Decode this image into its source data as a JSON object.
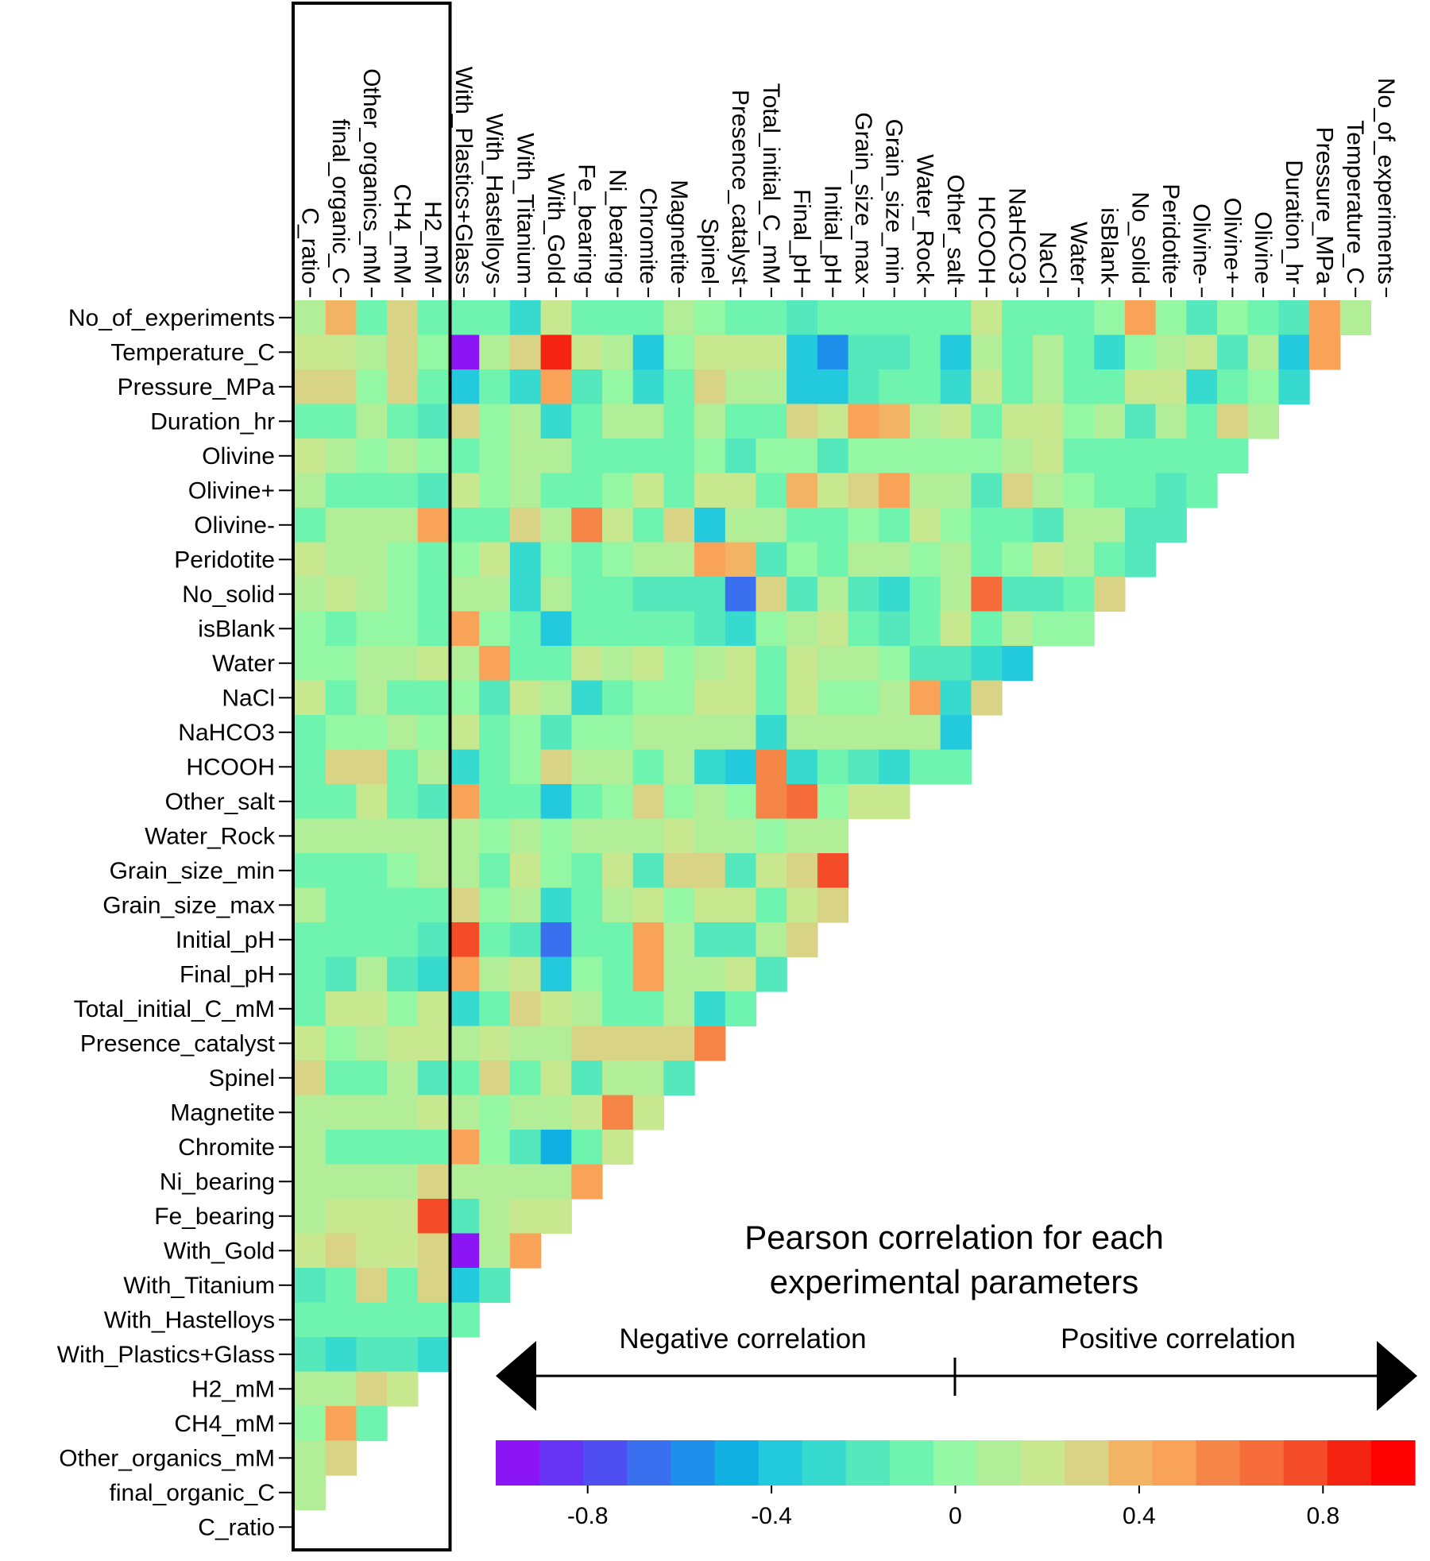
{
  "chart_data": {
    "type": "heatmap",
    "title_lines": [
      "Pearson correlation for each",
      "experimental parameters"
    ],
    "row_labels": [
      "No_of_experiments",
      "Temperature_C",
      "Pressure_MPa",
      "Duration_hr",
      "Olivine",
      "Olivine+",
      "Olivine-",
      "Peridotite",
      "No_solid",
      "isBlank",
      "Water",
      "NaCl",
      "NaHCO3",
      "HCOOH",
      "Other_salt",
      "Water_Rock",
      "Grain_size_min",
      "Grain_size_max",
      "Initial_pH",
      "Final_pH",
      "Total_initial_C_mM",
      "Presence_catalyst",
      "Spinel",
      "Magnetite",
      "Chromite",
      "Ni_bearing",
      "Fe_bearing",
      "With_Gold",
      "With_Titanium",
      "With_Hastelloys",
      "With_Plastics+Glass",
      "H2_mM",
      "CH4_mM",
      "Other_organics_mM",
      "final_organic_C",
      "C_ratio"
    ],
    "col_labels": [
      "C_ratio",
      "final_organic_C",
      "Other_organics_mM",
      "CH4_mM",
      "H2_mM",
      "With_Plastics+Glass",
      "With_Hastelloys",
      "With_Titanium",
      "With_Gold",
      "Fe_bearing",
      "Ni_bearing",
      "Chromite",
      "Magnetite",
      "Spinel",
      "Presence_catalyst",
      "Total_initial_C_mM",
      "Final_pH",
      "Initial_pH",
      "Grain_size_max",
      "Grain_size_min",
      "Water_Rock",
      "Other_salt",
      "HCOOH",
      "NaHCO3",
      "NaCl",
      "Water",
      "isBlank",
      "No_solid",
      "Peridotite",
      "Olivine-",
      "Olivine+",
      "Olivine",
      "Duration_hr",
      "Pressure_MPa",
      "Temperature_C",
      "No_of_experiments"
    ],
    "highlighted_columns": [
      "C_ratio",
      "final_organic_C",
      "Other_organics_mM",
      "CH4_mM",
      "H2_mM"
    ],
    "values": [
      [
        0.05,
        0.35,
        -0.1,
        0.25,
        -0.05,
        -0.05,
        -0.1,
        -0.25,
        0.2,
        -0.05,
        -0.1,
        -0.05,
        0.05,
        0.0,
        -0.1,
        -0.05,
        -0.15,
        -0.1,
        -0.05,
        -0.05,
        -0.05,
        -0.05,
        0.2,
        -0.05,
        -0.05,
        -0.05,
        0.0,
        0.45,
        0.0,
        -0.15,
        0.0,
        -0.05,
        -0.15,
        0.5,
        0.1
      ],
      [
        0.15,
        0.2,
        0.05,
        0.25,
        0.0,
        -0.95,
        0.05,
        0.25,
        0.9,
        0.15,
        0.05,
        -0.4,
        0.0,
        0.15,
        0.15,
        0.15,
        -0.4,
        -0.6,
        -0.2,
        -0.15,
        -0.05,
        -0.35,
        0.1,
        -0.1,
        0.05,
        -0.1,
        -0.25,
        0.0,
        0.05,
        0.15,
        -0.2,
        0.1,
        -0.35,
        0.5
      ],
      [
        0.3,
        0.25,
        0.0,
        0.25,
        -0.1,
        -0.35,
        -0.05,
        -0.25,
        0.45,
        -0.15,
        0.0,
        -0.25,
        -0.1,
        0.3,
        0.05,
        0.05,
        -0.4,
        -0.35,
        -0.15,
        -0.1,
        -0.1,
        -0.25,
        0.15,
        -0.05,
        0.05,
        -0.1,
        -0.1,
        0.2,
        0.2,
        -0.25,
        -0.1,
        0.0,
        -0.25
      ],
      [
        -0.05,
        -0.05,
        0.05,
        -0.1,
        -0.15,
        0.3,
        0.0,
        0.1,
        -0.25,
        -0.05,
        0.1,
        0.1,
        -0.1,
        0.05,
        -0.05,
        -0.05,
        0.3,
        0.2,
        0.5,
        0.4,
        0.1,
        0.2,
        -0.1,
        0.2,
        0.15,
        0.0,
        0.05,
        -0.15,
        0.05,
        -0.05,
        0.3,
        0.1
      ],
      [
        0.15,
        0.05,
        0.0,
        0.05,
        0.0,
        -0.05,
        0.0,
        0.1,
        0.1,
        -0.05,
        -0.05,
        -0.05,
        -0.05,
        0.0,
        -0.2,
        0.0,
        0.0,
        -0.15,
        0.0,
        0.0,
        0.0,
        0.0,
        0.0,
        0.05,
        0.2,
        -0.05,
        -0.05,
        -0.05,
        -0.1,
        -0.1,
        -0.1
      ],
      [
        0.05,
        -0.05,
        -0.05,
        -0.05,
        -0.15,
        0.15,
        0.0,
        0.1,
        -0.05,
        -0.05,
        0.0,
        0.2,
        -0.1,
        0.2,
        0.15,
        -0.1,
        0.4,
        0.2,
        0.3,
        0.45,
        0.05,
        0.1,
        -0.15,
        0.3,
        0.05,
        0.0,
        -0.05,
        -0.1,
        -0.2,
        -0.1
      ],
      [
        -0.1,
        0.05,
        0.1,
        0.1,
        0.5,
        -0.05,
        -0.05,
        0.3,
        0.05,
        0.6,
        0.2,
        -0.1,
        0.3,
        -0.4,
        0.1,
        0.1,
        -0.1,
        -0.05,
        0.0,
        -0.1,
        0.15,
        0.0,
        -0.05,
        -0.1,
        -0.15,
        0.1,
        0.05,
        -0.15,
        -0.2
      ],
      [
        0.15,
        0.05,
        0.05,
        0.0,
        -0.05,
        0.0,
        0.2,
        -0.25,
        0.0,
        -0.1,
        0.0,
        0.1,
        0.1,
        0.5,
        0.4,
        -0.2,
        0.0,
        -0.1,
        0.05,
        0.05,
        0.0,
        0.05,
        -0.05,
        0.0,
        0.2,
        0.1,
        -0.05,
        -0.15
      ],
      [
        0.05,
        0.2,
        0.05,
        0.0,
        -0.1,
        0.05,
        0.05,
        -0.25,
        0.05,
        -0.1,
        -0.1,
        -0.15,
        -0.15,
        -0.2,
        -0.65,
        0.25,
        -0.15,
        0.05,
        -0.15,
        -0.25,
        -0.1,
        0.05,
        0.65,
        -0.2,
        -0.2,
        -0.05,
        0.3
      ],
      [
        0.0,
        -0.1,
        0.0,
        0.0,
        -0.1,
        0.45,
        0.0,
        -0.05,
        -0.4,
        -0.05,
        -0.05,
        -0.05,
        -0.05,
        -0.15,
        -0.25,
        0.0,
        0.05,
        0.15,
        -0.05,
        -0.15,
        -0.05,
        0.15,
        -0.05,
        0.1,
        0.0,
        0.0
      ],
      [
        0.0,
        0.0,
        0.05,
        0.05,
        0.2,
        0.05,
        0.45,
        -0.05,
        -0.1,
        0.15,
        0.1,
        0.15,
        0.0,
        0.1,
        0.2,
        -0.1,
        0.15,
        0.05,
        0.05,
        0.0,
        -0.15,
        -0.15,
        -0.3,
        -0.4
      ],
      [
        0.15,
        -0.1,
        0.05,
        -0.05,
        -0.1,
        0.0,
        -0.15,
        0.15,
        0.05,
        -0.25,
        -0.1,
        0.0,
        0.0,
        0.2,
        0.15,
        -0.1,
        0.2,
        0.0,
        0.0,
        0.1,
        0.45,
        -0.3,
        0.3
      ],
      [
        -0.05,
        0.0,
        0.0,
        0.05,
        0.0,
        0.2,
        -0.05,
        0.0,
        -0.15,
        0.0,
        0.0,
        0.05,
        0.05,
        0.1,
        0.1,
        -0.25,
        0.1,
        0.05,
        0.05,
        0.1,
        0.1,
        -0.35
      ],
      [
        -0.05,
        0.25,
        0.25,
        -0.05,
        0.05,
        -0.25,
        -0.05,
        0.0,
        0.3,
        0.05,
        0.1,
        -0.1,
        0.05,
        -0.25,
        -0.4,
        0.6,
        -0.25,
        -0.05,
        -0.2,
        -0.3,
        -0.05,
        -0.1
      ],
      [
        -0.05,
        -0.05,
        0.15,
        -0.1,
        -0.15,
        0.45,
        -0.1,
        -0.05,
        -0.35,
        -0.1,
        0.0,
        0.3,
        0.0,
        0.05,
        0.0,
        0.55,
        0.7,
        0.0,
        0.15,
        0.15
      ],
      [
        0.05,
        0.05,
        0.1,
        0.05,
        0.1,
        0.1,
        0.0,
        0.1,
        0.0,
        0.05,
        0.1,
        0.1,
        0.15,
        0.05,
        0.1,
        0.0,
        0.05,
        0.1
      ],
      [
        -0.05,
        -0.05,
        -0.1,
        0.0,
        0.05,
        0.1,
        -0.1,
        0.15,
        0.0,
        -0.05,
        0.2,
        -0.15,
        0.25,
        0.25,
        -0.2,
        0.15,
        0.3,
        0.75
      ],
      [
        0.05,
        -0.05,
        -0.05,
        -0.05,
        -0.05,
        0.3,
        0.0,
        0.05,
        -0.25,
        -0.05,
        0.1,
        0.2,
        0.0,
        0.2,
        0.15,
        -0.1,
        0.2,
        0.3
      ],
      [
        -0.1,
        -0.1,
        -0.1,
        -0.1,
        -0.15,
        0.75,
        -0.1,
        -0.2,
        -0.65,
        -0.1,
        -0.1,
        0.45,
        0.05,
        -0.15,
        -0.15,
        0.05,
        0.3
      ],
      [
        -0.05,
        -0.2,
        0.05,
        -0.2,
        -0.3,
        0.45,
        0.1,
        0.15,
        -0.35,
        0.0,
        -0.05,
        0.45,
        0.05,
        0.05,
        0.15,
        -0.15
      ],
      [
        -0.05,
        0.15,
        0.2,
        0.0,
        0.2,
        -0.25,
        -0.05,
        0.3,
        0.2,
        0.05,
        -0.05,
        -0.05,
        0.05,
        -0.3,
        -0.1
      ],
      [
        0.15,
        0.0,
        0.05,
        0.15,
        0.2,
        0.05,
        0.15,
        0.05,
        0.05,
        0.25,
        0.25,
        0.3,
        0.3,
        0.55
      ],
      [
        0.25,
        -0.1,
        -0.1,
        0.05,
        -0.15,
        -0.05,
        0.25,
        -0.05,
        0.15,
        -0.15,
        0.05,
        0.05,
        -0.15
      ],
      [
        0.05,
        0.05,
        0.05,
        0.1,
        0.15,
        0.1,
        0.0,
        0.05,
        0.05,
        0.15,
        0.6,
        0.2
      ],
      [
        0.05,
        -0.1,
        -0.1,
        -0.1,
        -0.1,
        0.5,
        0.0,
        -0.15,
        -0.45,
        -0.05,
        0.15
      ],
      [
        0.05,
        0.1,
        0.1,
        0.1,
        0.25,
        0.05,
        0.05,
        0.1,
        0.1,
        0.45
      ],
      [
        0.05,
        0.15,
        0.2,
        0.2,
        0.75,
        -0.15,
        0.05,
        0.2,
        0.2
      ],
      [
        0.2,
        0.25,
        0.15,
        0.15,
        0.25,
        -0.95,
        0.05,
        0.45
      ],
      [
        -0.15,
        -0.05,
        0.3,
        -0.05,
        0.3,
        -0.35,
        -0.15
      ],
      [
        -0.05,
        -0.05,
        -0.05,
        -0.05,
        -0.05,
        -0.05
      ],
      [
        -0.15,
        -0.25,
        -0.15,
        -0.15,
        -0.3
      ],
      [
        0.1,
        0.1,
        0.3,
        0.15
      ],
      [
        0.0,
        0.5,
        -0.05
      ],
      [
        0.05,
        0.3
      ],
      [
        0.05
      ],
      []
    ],
    "colorbar": {
      "range": [
        -1,
        1
      ],
      "ticks": [
        -0.8,
        -0.4,
        0,
        0.4,
        0.8
      ],
      "tick_labels": [
        "-0.8",
        "-0.4",
        "0",
        "0.4",
        "0.8"
      ],
      "colors": [
        "#8b15f5",
        "#6733f5",
        "#4f4ff1",
        "#3a70ef",
        "#1e8eeb",
        "#10b0e3",
        "#23c9dd",
        "#37dace",
        "#54e8bc",
        "#6ef4ae",
        "#93f7a4",
        "#b2ee98",
        "#c8e88f",
        "#d9d485",
        "#f2b365",
        "#f8a357",
        "#f58546",
        "#f56b3a",
        "#f44c28",
        "#f52312",
        "#fe0202"
      ]
    },
    "negative_label": "Negative correlation",
    "positive_label": "Positive correlation"
  }
}
